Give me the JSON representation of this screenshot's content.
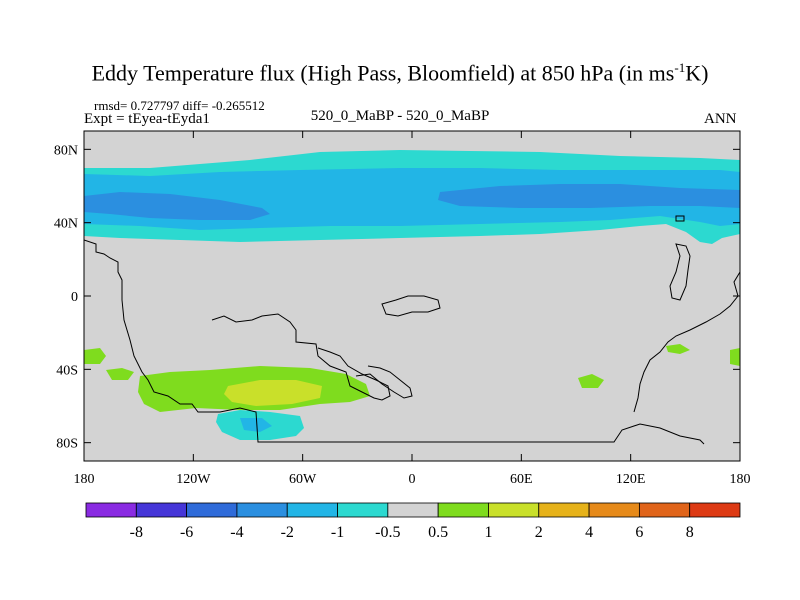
{
  "title_main": "Eddy Temperature flux (High Pass, Bloomfield) at 850 hPa (in ms",
  "title_sup": "-1",
  "title_tail": "K)",
  "stats": "rmsd= 0.727797 diff= -0.265512",
  "expt": "Expt = tEyea-tEyda1",
  "case": "520_0_MaBP - 520_0_MaBP",
  "period": "ANN",
  "map": {
    "projection": "cylindrical equidistant",
    "lon_range": [
      -180,
      180
    ],
    "lat_range": [
      -90,
      90
    ],
    "background_color": "#d3d3d3",
    "lon_ticks": [
      {
        "value": -180,
        "label": "180"
      },
      {
        "value": -120,
        "label": "120W"
      },
      {
        "value": -60,
        "label": "60W"
      },
      {
        "value": 0,
        "label": "0"
      },
      {
        "value": 60,
        "label": "60E"
      },
      {
        "value": 120,
        "label": "120E"
      },
      {
        "value": 180,
        "label": "180"
      }
    ],
    "lat_ticks": [
      {
        "value": 80,
        "label": "80N"
      },
      {
        "value": 40,
        "label": "40N"
      },
      {
        "value": 0,
        "label": "0"
      },
      {
        "value": -40,
        "label": "40S"
      },
      {
        "value": -80,
        "label": "80S"
      }
    ]
  },
  "colorbar": {
    "levels": [
      "-8",
      "-6",
      "-4",
      "-2",
      "-1",
      "-0.5",
      "0.5",
      "1",
      "2",
      "4",
      "6",
      "8"
    ],
    "colors": [
      "#8a2be2",
      "#4636d8",
      "#2f6bd9",
      "#2b8fe0",
      "#22b5e6",
      "#2cd9d0",
      "#d3d3d3",
      "#7fdc1e",
      "#c9e02a",
      "#e6b21a",
      "#e68a1a",
      "#e0641a",
      "#dd3a14"
    ]
  }
}
